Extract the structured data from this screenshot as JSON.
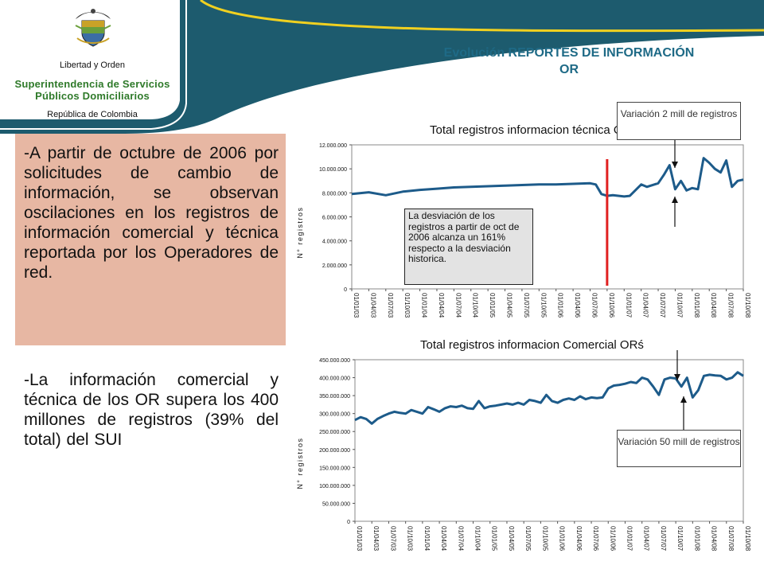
{
  "header": {
    "motto": "Libertad y Orden",
    "org_line1": "Superintendencia de Servicios",
    "org_line2": "Públicos Domiciliarios",
    "country": "República de Colombia",
    "colors": {
      "banner": "#1d5b6e",
      "accent": "#f0d020",
      "org_text": "#2f7a2a"
    },
    "logo_icon": "coat-of-arms-icon"
  },
  "slide_title": "Evolución  REPORTES DE INFORMACIÓN  OR",
  "paragraphs": [
    "-A partir de octubre de 2006 por solicitudes de cambio de información, se observan oscilaciones en los registros de información comercial y técnica reportada por los Operadores de red.",
    "-La información comercial y técnica de los OR supera los 400 millones de registros (39% del total) del SUI"
  ],
  "callouts": {
    "top": "Variación  2 mill de registros",
    "bottom": "Variación  50 mill de registros"
  },
  "annotation": "La desviación de los registros a partir de oct de 2006 alcanza un 161% respecto a la desviación historica.",
  "chart_data": [
    {
      "type": "line",
      "title": "Total registros informacion técnica ORś",
      "ylabel": "N° registros",
      "ylim": [
        0,
        12000000
      ],
      "yticks": [
        "0",
        "2.000.000",
        "4.000.000",
        "6.000.000",
        "8.000.000",
        "10.000.000",
        "12.000.000"
      ],
      "xticks": [
        "01/01/03",
        "01/04/03",
        "01/07/03",
        "01/10/03",
        "01/01/04",
        "01/04/04",
        "01/07/04",
        "01/10/04",
        "01/01/05",
        "01/04/05",
        "01/07/05",
        "01/10/05",
        "01/01/06",
        "01/04/06",
        "01/07/06",
        "01/10/06",
        "01/01/07",
        "01/04/07",
        "01/07/07",
        "01/10/07",
        "01/01/08",
        "01/04/08",
        "01/07/08",
        "01/10/08"
      ],
      "marker_date": "01/10/06",
      "series": [
        {
          "color": "#1d5b8a",
          "x": [
            "2003-01",
            "2003-04",
            "2003-07",
            "2003-10",
            "2004-01",
            "2004-04",
            "2004-07",
            "2004-10",
            "2005-01",
            "2005-04",
            "2005-07",
            "2005-10",
            "2006-01",
            "2006-04",
            "2006-07",
            "2006-08",
            "2006-09",
            "2006-10",
            "2006-11",
            "2007-01",
            "2007-02",
            "2007-04",
            "2007-05",
            "2007-07",
            "2007-08",
            "2007-09",
            "2007-10",
            "2007-11",
            "2007-12",
            "2008-01",
            "2008-02",
            "2008-03",
            "2008-04",
            "2008-05",
            "2008-06",
            "2008-07",
            "2008-08",
            "2008-09",
            "2008-10"
          ],
          "values": [
            7900000,
            8050000,
            7800000,
            8100000,
            8250000,
            8350000,
            8450000,
            8500000,
            8550000,
            8600000,
            8650000,
            8700000,
            8700000,
            8750000,
            8800000,
            8700000,
            7900000,
            7750000,
            7800000,
            7700000,
            7750000,
            8700000,
            8500000,
            8800000,
            9500000,
            10300000,
            8300000,
            9000000,
            8200000,
            8400000,
            8300000,
            10900000,
            10500000,
            10000000,
            9700000,
            10700000,
            8500000,
            9000000,
            9100000
          ]
        }
      ]
    },
    {
      "type": "line",
      "title": "Total registros informacion Comercial ORś",
      "ylabel": "N° registros",
      "ylim": [
        0,
        450000000
      ],
      "yticks": [
        "0",
        "50.000.000",
        "100.000.000",
        "150.000.000",
        "200.000.000",
        "250.000.000",
        "300.000.000",
        "350.000.000",
        "400.000.000",
        "450.000.000"
      ],
      "xticks": [
        "01/01/03",
        "01/04/03",
        "01/07/03",
        "01/10/03",
        "01/01/04",
        "01/04/04",
        "01/07/04",
        "01/10/04",
        "01/01/05",
        "01/04/05",
        "01/07/05",
        "01/10/05",
        "01/01/06",
        "01/04/06",
        "01/07/06",
        "01/10/06",
        "01/01/07",
        "01/04/07",
        "01/07/07",
        "01/10/07",
        "01/01/08",
        "01/04/08",
        "01/07/08",
        "01/10/08"
      ],
      "series": [
        {
          "color": "#1d5b8a",
          "x": [
            "2003-01",
            "2003-02",
            "2003-03",
            "2003-04",
            "2003-05",
            "2003-06",
            "2003-07",
            "2003-08",
            "2003-09",
            "2003-10",
            "2003-11",
            "2003-12",
            "2004-01",
            "2004-02",
            "2004-03",
            "2004-04",
            "2004-05",
            "2004-06",
            "2004-07",
            "2004-08",
            "2004-09",
            "2004-10",
            "2004-11",
            "2004-12",
            "2005-01",
            "2005-02",
            "2005-03",
            "2005-04",
            "2005-05",
            "2005-06",
            "2005-07",
            "2005-08",
            "2005-09",
            "2005-10",
            "2005-11",
            "2005-12",
            "2006-01",
            "2006-02",
            "2006-03",
            "2006-04",
            "2006-05",
            "2006-06",
            "2006-07",
            "2006-08",
            "2006-09",
            "2006-10",
            "2006-11",
            "2006-12",
            "2007-01",
            "2007-02",
            "2007-03",
            "2007-04",
            "2007-05",
            "2007-06",
            "2007-07",
            "2007-08",
            "2007-09",
            "2007-10",
            "2007-11",
            "2007-12",
            "2008-01",
            "2008-02",
            "2008-03",
            "2008-04",
            "2008-05",
            "2008-06",
            "2008-07",
            "2008-08",
            "2008-09",
            "2008-10"
          ],
          "values": [
            282000000,
            290000000,
            285000000,
            272000000,
            285000000,
            293000000,
            300000000,
            305000000,
            302000000,
            300000000,
            310000000,
            305000000,
            300000000,
            318000000,
            312000000,
            305000000,
            315000000,
            320000000,
            318000000,
            322000000,
            315000000,
            313000000,
            335000000,
            315000000,
            320000000,
            322000000,
            325000000,
            328000000,
            325000000,
            330000000,
            325000000,
            338000000,
            335000000,
            330000000,
            352000000,
            335000000,
            330000000,
            338000000,
            342000000,
            338000000,
            348000000,
            340000000,
            345000000,
            343000000,
            345000000,
            370000000,
            378000000,
            380000000,
            383000000,
            388000000,
            385000000,
            400000000,
            395000000,
            375000000,
            352000000,
            395000000,
            400000000,
            398000000,
            375000000,
            400000000,
            345000000,
            365000000,
            405000000,
            408000000,
            406000000,
            405000000,
            395000000,
            400000000,
            415000000,
            405000000
          ]
        }
      ]
    }
  ]
}
